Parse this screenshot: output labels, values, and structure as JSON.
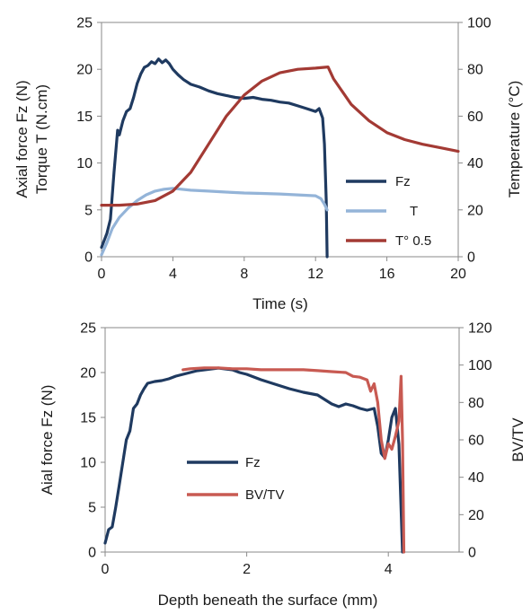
{
  "chart_data": [
    {
      "type": "line",
      "xlabel": "Time (s)",
      "ylabel_lines": [
        "Axial force Fz (N)",
        "Torque T  (N.cm)"
      ],
      "y2label": "Temperature (°C)",
      "xlim": [
        0,
        20
      ],
      "ylim": [
        0,
        25
      ],
      "y2lim": [
        0,
        100
      ],
      "xticks": [
        "0",
        "4",
        "8",
        "12",
        "16",
        "20"
      ],
      "yticks": [
        "0",
        "5",
        "10",
        "15",
        "20",
        "25"
      ],
      "y2ticks": [
        "0",
        "20",
        "40",
        "60",
        "80",
        "100"
      ],
      "legend_position": "right",
      "series": [
        {
          "name": "Fz",
          "axis": "left",
          "color": "#1f3a60",
          "x": [
            0,
            0.3,
            0.5,
            0.7,
            0.9,
            1.0,
            1.2,
            1.4,
            1.6,
            1.8,
            2.0,
            2.2,
            2.4,
            2.6,
            2.8,
            3.0,
            3.2,
            3.4,
            3.6,
            3.8,
            4.0,
            4.3,
            4.6,
            5.0,
            5.5,
            6.0,
            6.5,
            7.0,
            7.5,
            8.0,
            8.5,
            9.0,
            9.5,
            10.0,
            10.5,
            11.0,
            11.5,
            12.0,
            12.2,
            12.4,
            12.5,
            12.6,
            12.65
          ],
          "y": [
            1.0,
            2.5,
            4.0,
            9.0,
            13.5,
            13.0,
            14.5,
            15.5,
            15.8,
            17.0,
            18.5,
            19.5,
            20.2,
            20.4,
            20.8,
            20.6,
            21.1,
            20.7,
            21.0,
            20.6,
            20.0,
            19.4,
            18.9,
            18.4,
            18.1,
            17.7,
            17.4,
            17.2,
            17.0,
            16.9,
            17.0,
            16.8,
            16.7,
            16.5,
            16.4,
            16.1,
            15.8,
            15.5,
            15.8,
            14.8,
            12.0,
            6.0,
            0.0
          ]
        },
        {
          "name": "T",
          "axis": "left",
          "color": "#94b4d8",
          "x": [
            0,
            0.3,
            0.6,
            1.0,
            1.5,
            2.0,
            2.5,
            3.0,
            3.5,
            4.0,
            5.0,
            6.0,
            7.0,
            8.0,
            9.0,
            10.0,
            11.0,
            12.0,
            12.3,
            12.5,
            12.65
          ],
          "y": [
            0.2,
            1.5,
            3.0,
            4.2,
            5.2,
            6.0,
            6.6,
            7.0,
            7.2,
            7.3,
            7.1,
            7.0,
            6.9,
            6.8,
            6.75,
            6.7,
            6.6,
            6.5,
            6.2,
            5.6,
            5.0
          ]
        },
        {
          "name": "T° 0.5",
          "axis": "right",
          "color": "#a33a34",
          "x": [
            0,
            1,
            2,
            3,
            4,
            5,
            6,
            7,
            8,
            9,
            10,
            11,
            12,
            12.7,
            13,
            14,
            15,
            16,
            17,
            18,
            19,
            20
          ],
          "y": [
            22,
            22,
            22.5,
            24,
            28,
            36,
            48,
            60,
            69,
            75,
            78.5,
            80,
            80.5,
            81,
            76,
            65,
            58,
            53,
            50,
            48,
            46.5,
            45
          ]
        }
      ]
    },
    {
      "type": "line",
      "xlabel": "Depth beneath the surface (mm)",
      "ylabel": "Aial force Fz (N)",
      "y2label": "BV/TV",
      "xlim": [
        0,
        5
      ],
      "ylim": [
        0,
        25
      ],
      "y2lim": [
        0,
        120
      ],
      "xticks": [
        "0",
        "2",
        "4"
      ],
      "xtick_values": [
        0,
        2,
        4
      ],
      "yticks": [
        "0",
        "5",
        "10",
        "15",
        "20",
        "25"
      ],
      "y2ticks": [
        "0",
        "20",
        "40",
        "60",
        "80",
        "100",
        "120"
      ],
      "legend_position": "center-left",
      "series": [
        {
          "name": "Fz",
          "axis": "left",
          "color": "#1f3a60",
          "x": [
            0,
            0.05,
            0.1,
            0.15,
            0.2,
            0.25,
            0.3,
            0.35,
            0.4,
            0.45,
            0.5,
            0.55,
            0.6,
            0.7,
            0.8,
            0.9,
            1.0,
            1.1,
            1.2,
            1.3,
            1.4,
            1.5,
            1.6,
            1.7,
            1.8,
            1.9,
            2.0,
            2.2,
            2.4,
            2.6,
            2.8,
            3.0,
            3.1,
            3.2,
            3.3,
            3.4,
            3.5,
            3.6,
            3.7,
            3.8,
            3.85,
            3.9,
            3.95,
            4.0,
            4.05,
            4.1,
            4.15,
            4.2
          ],
          "y": [
            1.0,
            2.5,
            2.8,
            5.0,
            7.5,
            10.0,
            12.5,
            13.5,
            16.0,
            16.5,
            17.5,
            18.2,
            18.8,
            19.0,
            19.1,
            19.3,
            19.6,
            19.8,
            20.0,
            20.2,
            20.3,
            20.4,
            20.5,
            20.4,
            20.3,
            20.0,
            19.8,
            19.2,
            18.7,
            18.2,
            17.8,
            17.5,
            17.0,
            16.5,
            16.2,
            16.5,
            16.3,
            16.0,
            15.8,
            16.0,
            14.0,
            11.0,
            10.5,
            12.5,
            15.0,
            16.0,
            12.0,
            0.0
          ]
        },
        {
          "name": "BV/TV",
          "axis": "right",
          "color": "#c85a52",
          "x": [
            1.1,
            1.2,
            1.4,
            1.6,
            1.8,
            2.0,
            2.2,
            2.4,
            2.6,
            2.8,
            3.0,
            3.2,
            3.4,
            3.5,
            3.6,
            3.7,
            3.75,
            3.8,
            3.85,
            3.9,
            3.95,
            4.0,
            4.05,
            4.1,
            4.15,
            4.18,
            4.2,
            4.22
          ],
          "y": [
            97.5,
            98,
            98.5,
            98.5,
            98,
            98,
            97.5,
            97.5,
            97.5,
            97.5,
            97,
            96.5,
            96,
            94,
            93.5,
            92,
            86,
            90,
            80,
            60,
            50,
            58,
            55,
            62,
            70,
            94,
            60,
            0
          ]
        }
      ]
    }
  ]
}
